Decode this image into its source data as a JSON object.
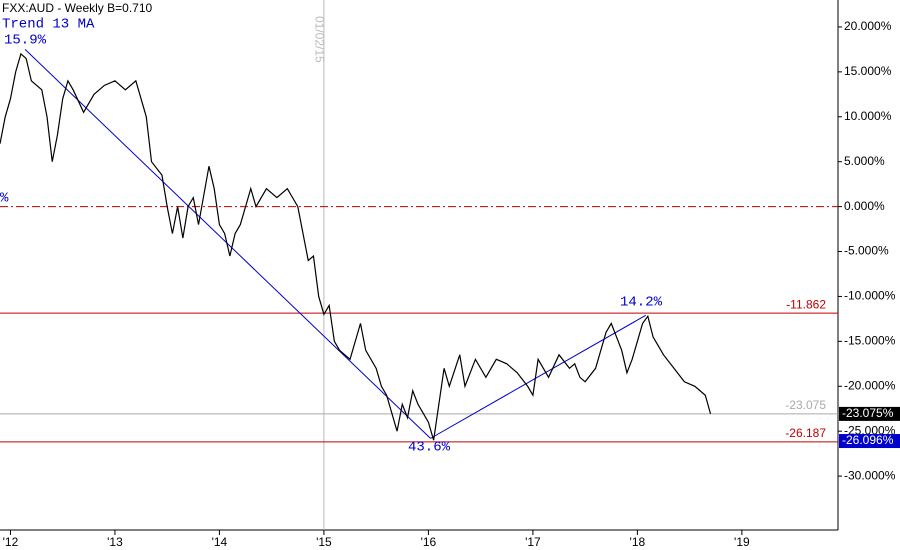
{
  "chart_data": {
    "type": "line",
    "title": "FXX:AUD - Weekly  B=0.710",
    "subtitle": "Trend 13 MA",
    "xlim": [
      2011.9,
      2019.92
    ],
    "ylim": [
      -36,
      23
    ],
    "xticks": [
      {
        "value": 2012,
        "label": "'12"
      },
      {
        "value": 2013,
        "label": "'13"
      },
      {
        "value": 2014,
        "label": "'14"
      },
      {
        "value": 2015,
        "label": "'15"
      },
      {
        "value": 2016,
        "label": "'16"
      },
      {
        "value": 2017,
        "label": "'17"
      },
      {
        "value": 2018,
        "label": "'18"
      },
      {
        "value": 2019,
        "label": "'19"
      }
    ],
    "yticks": [
      {
        "value": 20,
        "label": "20.000%"
      },
      {
        "value": 15,
        "label": "15.000%"
      },
      {
        "value": 10,
        "label": "10.000%"
      },
      {
        "value": 5,
        "label": "5.000%"
      },
      {
        "value": 0,
        "label": "0.000%"
      },
      {
        "value": -5,
        "label": "-5.000%"
      },
      {
        "value": -10,
        "label": "-10.000%"
      },
      {
        "value": -15,
        "label": "-15.000%"
      },
      {
        "value": -20,
        "label": "-20.000%"
      },
      {
        "value": -25,
        "label": "-25.000%"
      },
      {
        "value": -30,
        "label": "-30.000%"
      }
    ],
    "series": [
      {
        "color": "#000000",
        "x": [
          2011.9,
          2011.95,
          2012.0,
          2012.05,
          2012.1,
          2012.15,
          2012.2,
          2012.3,
          2012.35,
          2012.4,
          2012.45,
          2012.5,
          2012.55,
          2012.6,
          2012.7,
          2012.8,
          2012.9,
          2013.0,
          2013.1,
          2013.2,
          2013.3,
          2013.35,
          2013.45,
          2013.5,
          2013.55,
          2013.6,
          2013.65,
          2013.7,
          2013.75,
          2013.8,
          2013.9,
          2013.95,
          2014.0,
          2014.05,
          2014.1,
          2014.15,
          2014.2,
          2014.25,
          2014.3,
          2014.35,
          2014.45,
          2014.55,
          2014.65,
          2014.7,
          2014.75,
          2014.8,
          2014.85,
          2014.9,
          2014.95,
          2015.0,
          2015.05,
          2015.1,
          2015.15,
          2015.25,
          2015.35,
          2015.4,
          2015.5,
          2015.55,
          2015.6,
          2015.7,
          2015.75,
          2015.8,
          2015.85,
          2015.9,
          2016.0,
          2016.05,
          2016.1,
          2016.15,
          2016.2,
          2016.3,
          2016.35,
          2016.45,
          2016.55,
          2016.65,
          2016.75,
          2016.85,
          2016.95,
          2017.0,
          2017.05,
          2017.15,
          2017.25,
          2017.35,
          2017.4,
          2017.45,
          2017.5,
          2017.6,
          2017.7,
          2017.75,
          2017.85,
          2017.9,
          2017.95,
          2018.05,
          2018.1,
          2018.15,
          2018.2,
          2018.25,
          2018.35,
          2018.45,
          2018.55,
          2018.65,
          2018.7
        ],
        "values": [
          7,
          10,
          12,
          15,
          17,
          16.5,
          14,
          13,
          10,
          5,
          8,
          12,
          14,
          13,
          10.5,
          12.5,
          13.5,
          14,
          13,
          14,
          10,
          5,
          3.5,
          0,
          -3,
          0,
          -3.5,
          0,
          1,
          -2,
          4.5,
          2,
          -2,
          -3,
          -5.5,
          -3,
          -2,
          0,
          2,
          0,
          2,
          1,
          2,
          1,
          0,
          -3,
          -6,
          -5.5,
          -10,
          -12,
          -11,
          -15,
          -16,
          -17,
          -13,
          -16,
          -18,
          -20,
          -21,
          -25,
          -22,
          -23.5,
          -20.5,
          -22,
          -24,
          -26,
          -22,
          -18,
          -20,
          -16.5,
          -20,
          -17,
          -19,
          -17,
          -17.5,
          -18.5,
          -20,
          -21,
          -17,
          -19,
          -16.5,
          -18,
          -17.5,
          -19,
          -19.5,
          -18,
          -14,
          -13,
          -16,
          -18.5,
          -17,
          -13,
          -12.2,
          -14.5,
          -15.5,
          -16.5,
          -18,
          -19.5,
          -20,
          -21,
          -23.075
        ]
      }
    ],
    "trend_lines": [
      {
        "color": "#0000cc",
        "x": [
          2012.14,
          2016.02
        ],
        "values": [
          17.5,
          -25.8
        ]
      },
      {
        "color": "#0000cc",
        "x": [
          2016.02,
          2018.08
        ],
        "values": [
          -25.8,
          -12.1
        ]
      }
    ],
    "levels": [
      {
        "value": 0,
        "color": "#c00000",
        "style": "dashdot"
      },
      {
        "value": -11.862,
        "color": "#c00000",
        "style": "solid"
      },
      {
        "value": -23.075,
        "color": "#aaaaaa",
        "style": "solid"
      },
      {
        "value": -26.187,
        "color": "#c00000",
        "style": "solid"
      }
    ],
    "badges": [
      {
        "value": -23.075,
        "label": "-23.075%",
        "color": "#000000"
      },
      {
        "value": -26.096,
        "label": "-26.096%",
        "color": "#0000cc"
      }
    ],
    "vline": {
      "x": 2015,
      "label": "01/02/15"
    },
    "annotations": [
      "15.9%",
      "14.2%",
      "43.6%",
      "%"
    ]
  }
}
